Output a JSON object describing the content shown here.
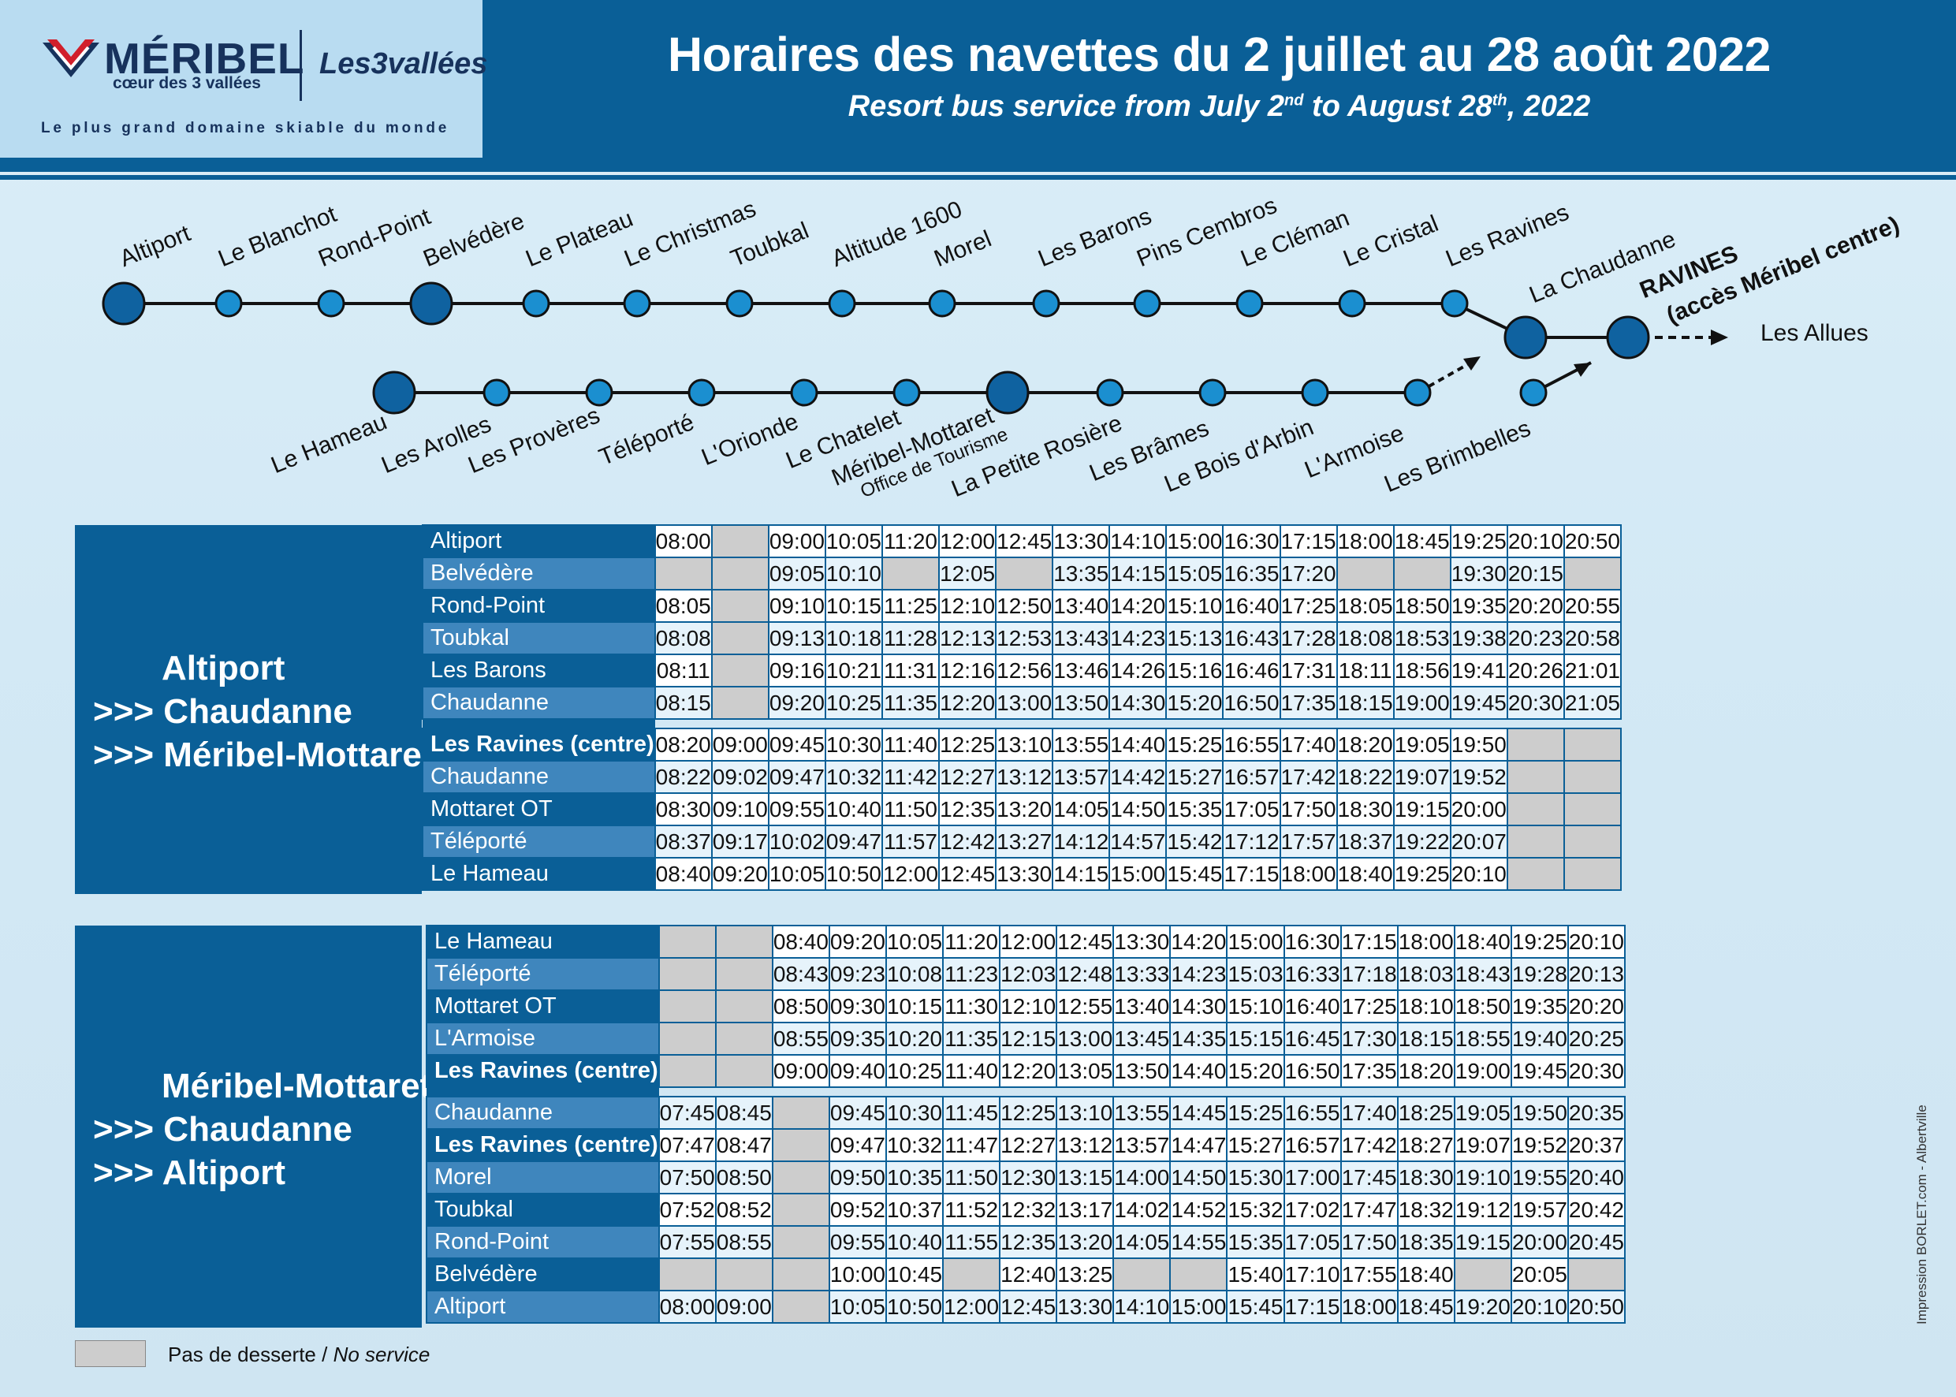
{
  "header": {
    "brand": "MÉRIBEL",
    "brand_sub": "cœur des 3 vallées",
    "partner": "Les3vallées",
    "tagline": "Le plus grand domaine skiable du monde",
    "title": "Horaires des navettes du 2 juillet au 28 août 2022",
    "subtitle_a": "Resort bus service from July 2",
    "subtitle_sup1": "nd",
    "subtitle_b": " to August 28",
    "subtitle_sup2": "th",
    "subtitle_c": ", 2022"
  },
  "route": {
    "upper_line": [
      "Altiport",
      "Le Blanchot",
      "Rond-Point",
      "Belvédère",
      "Le Plateau",
      "Le Christmas",
      "Toubkal",
      "Altitude 1600",
      "Morel",
      "Les Barons",
      "Pins Cembros",
      "Le Cléman",
      "Le Cristal",
      "Les Ravines"
    ],
    "lower_line": [
      "Le Hameau",
      "Les Arolles",
      "Les Provères",
      "Téléporté",
      "L'Orionde",
      "Le Chatelet",
      "Méribel-Mottaret",
      "La Petite Rosière",
      "Les Brâmes",
      "Le Bois d'Arbin",
      "L'Armoise",
      "Les Brimbelles"
    ],
    "mottaret_sub": "Office de Tourisme",
    "hub_chaudanne": "La Chaudanne",
    "hub_ravines": "RAVINES",
    "hub_ravines_sub": "(accès Méribel centre)",
    "allues": "Les Allues"
  },
  "table1": {
    "title_lines": [
      "Altiport",
      ">>> Chaudanne",
      ">>> Méribel-Mottaret"
    ],
    "rows": [
      {
        "stop": "Altiport",
        "times": [
          "08:00",
          "",
          "09:00",
          "10:05",
          "11:20",
          "12:00",
          "12:45",
          "13:30",
          "14:10",
          "15:00",
          "16:30",
          "17:15",
          "18:00",
          "18:45",
          "19:25",
          "20:10",
          "20:50"
        ]
      },
      {
        "stop": "Belvédère",
        "times": [
          "",
          "",
          "09:05",
          "10:10",
          "",
          "12:05",
          "",
          "13:35",
          "14:15",
          "15:05",
          "16:35",
          "17:20",
          "",
          "",
          "19:30",
          "20:15",
          ""
        ]
      },
      {
        "stop": "Rond-Point",
        "times": [
          "08:05",
          "",
          "09:10",
          "10:15",
          "11:25",
          "12:10",
          "12:50",
          "13:40",
          "14:20",
          "15:10",
          "16:40",
          "17:25",
          "18:05",
          "18:50",
          "19:35",
          "20:20",
          "20:55"
        ]
      },
      {
        "stop": "Toubkal",
        "times": [
          "08:08",
          "",
          "09:13",
          "10:18",
          "11:28",
          "12:13",
          "12:53",
          "13:43",
          "14:23",
          "15:13",
          "16:43",
          "17:28",
          "18:08",
          "18:53",
          "19:38",
          "20:23",
          "20:58"
        ]
      },
      {
        "stop": "Les Barons",
        "times": [
          "08:11",
          "",
          "09:16",
          "10:21",
          "11:31",
          "12:16",
          "12:56",
          "13:46",
          "14:26",
          "15:16",
          "16:46",
          "17:31",
          "18:11",
          "18:56",
          "19:41",
          "20:26",
          "21:01"
        ]
      },
      {
        "stop": "Chaudanne",
        "times": [
          "08:15",
          "",
          "09:20",
          "10:25",
          "11:35",
          "12:20",
          "13:00",
          "13:50",
          "14:30",
          "15:20",
          "16:50",
          "17:35",
          "18:15",
          "19:00",
          "19:45",
          "20:30",
          "21:05"
        ]
      },
      {
        "stop": "Les Ravines (centre)",
        "times": [
          "08:20",
          "09:00",
          "09:45",
          "10:30",
          "11:40",
          "12:25",
          "13:10",
          "13:55",
          "14:40",
          "15:25",
          "16:55",
          "17:40",
          "18:20",
          "19:05",
          "19:50",
          "",
          ""
        ]
      },
      {
        "stop": "Chaudanne",
        "times": [
          "08:22",
          "09:02",
          "09:47",
          "10:32",
          "11:42",
          "12:27",
          "13:12",
          "13:57",
          "14:42",
          "15:27",
          "16:57",
          "17:42",
          "18:22",
          "19:07",
          "19:52",
          "",
          ""
        ]
      },
      {
        "stop": "Mottaret OT",
        "times": [
          "08:30",
          "09:10",
          "09:55",
          "10:40",
          "11:50",
          "12:35",
          "13:20",
          "14:05",
          "14:50",
          "15:35",
          "17:05",
          "17:50",
          "18:30",
          "19:15",
          "20:00",
          "",
          ""
        ]
      },
      {
        "stop": "Téléporté",
        "times": [
          "08:37",
          "09:17",
          "10:02",
          "09:47",
          "11:57",
          "12:42",
          "13:27",
          "14:12",
          "14:57",
          "15:42",
          "17:12",
          "17:57",
          "18:37",
          "19:22",
          "20:07",
          "",
          ""
        ]
      },
      {
        "stop": "Le Hameau",
        "times": [
          "08:40",
          "09:20",
          "10:05",
          "10:50",
          "12:00",
          "12:45",
          "13:30",
          "14:15",
          "15:00",
          "15:45",
          "17:15",
          "18:00",
          "18:40",
          "19:25",
          "20:10",
          "",
          ""
        ]
      }
    ]
  },
  "table2": {
    "title_lines": [
      "Méribel-Mottaret",
      ">>> Chaudanne",
      ">>> Altiport"
    ],
    "rows": [
      {
        "stop": "Le Hameau",
        "times": [
          "",
          "",
          "08:40",
          "09:20",
          "10:05",
          "11:20",
          "12:00",
          "12:45",
          "13:30",
          "14:20",
          "15:00",
          "16:30",
          "17:15",
          "18:00",
          "18:40",
          "19:25",
          "20:10"
        ]
      },
      {
        "stop": "Téléporté",
        "times": [
          "",
          "",
          "08:43",
          "09:23",
          "10:08",
          "11:23",
          "12:03",
          "12:48",
          "13:33",
          "14:23",
          "15:03",
          "16:33",
          "17:18",
          "18:03",
          "18:43",
          "19:28",
          "20:13"
        ]
      },
      {
        "stop": "Mottaret OT",
        "times": [
          "",
          "",
          "08:50",
          "09:30",
          "10:15",
          "11:30",
          "12:10",
          "12:55",
          "13:40",
          "14:30",
          "15:10",
          "16:40",
          "17:25",
          "18:10",
          "18:50",
          "19:35",
          "20:20"
        ]
      },
      {
        "stop": "L'Armoise",
        "times": [
          "",
          "",
          "08:55",
          "09:35",
          "10:20",
          "11:35",
          "12:15",
          "13:00",
          "13:45",
          "14:35",
          "15:15",
          "16:45",
          "17:30",
          "18:15",
          "18:55",
          "19:40",
          "20:25"
        ]
      },
      {
        "stop": "Les Ravines (centre)",
        "times": [
          "",
          "",
          "09:00",
          "09:40",
          "10:25",
          "11:40",
          "12:20",
          "13:05",
          "13:50",
          "14:40",
          "15:20",
          "16:50",
          "17:35",
          "18:20",
          "19:00",
          "19:45",
          "20:30"
        ]
      },
      {
        "stop": "Chaudanne",
        "times": [
          "07:45",
          "08:45",
          "",
          "09:45",
          "10:30",
          "11:45",
          "12:25",
          "13:10",
          "13:55",
          "14:45",
          "15:25",
          "16:55",
          "17:40",
          "18:25",
          "19:05",
          "19:50",
          "20:35"
        ]
      },
      {
        "stop": "Les Ravines (centre)",
        "times": [
          "07:47",
          "08:47",
          "",
          "09:47",
          "10:32",
          "11:47",
          "12:27",
          "13:12",
          "13:57",
          "14:47",
          "15:27",
          "16:57",
          "17:42",
          "18:27",
          "19:07",
          "19:52",
          "20:37"
        ]
      },
      {
        "stop": "Morel",
        "times": [
          "07:50",
          "08:50",
          "",
          "09:50",
          "10:35",
          "11:50",
          "12:30",
          "13:15",
          "14:00",
          "14:50",
          "15:30",
          "17:00",
          "17:45",
          "18:30",
          "19:10",
          "19:55",
          "20:40"
        ]
      },
      {
        "stop": "Toubkal",
        "times": [
          "07:52",
          "08:52",
          "",
          "09:52",
          "10:37",
          "11:52",
          "12:32",
          "13:17",
          "14:02",
          "14:52",
          "15:32",
          "17:02",
          "17:47",
          "18:32",
          "19:12",
          "19:57",
          "20:42"
        ]
      },
      {
        "stop": "Rond-Point",
        "times": [
          "07:55",
          "08:55",
          "",
          "09:55",
          "10:40",
          "11:55",
          "12:35",
          "13:20",
          "14:05",
          "14:55",
          "15:35",
          "17:05",
          "17:50",
          "18:35",
          "19:15",
          "20:00",
          "20:45"
        ]
      },
      {
        "stop": "Belvédère",
        "times": [
          "",
          "",
          "",
          "10:00",
          "10:45",
          "",
          "12:40",
          "13:25",
          "",
          "",
          "15:40",
          "17:10",
          "17:55",
          "18:40",
          "",
          "20:05",
          ""
        ]
      },
      {
        "stop": "Altiport",
        "times": [
          "08:00",
          "09:00",
          "",
          "10:05",
          "10:50",
          "12:00",
          "12:45",
          "13:30",
          "14:10",
          "15:00",
          "15:45",
          "17:15",
          "18:00",
          "18:45",
          "19:20",
          "20:10",
          "20:50"
        ]
      }
    ]
  },
  "legend": {
    "fr": "Pas de desserte / ",
    "en": "No service"
  },
  "credit": "Impression  BORLET.com - Albertville",
  "colors": {
    "navy": "#0a5f97",
    "mid": "#3f86bd",
    "stop_fill": "#1b8fd0",
    "hub_fill": "#0f62a0",
    "noservice": "#cdcdcd"
  }
}
